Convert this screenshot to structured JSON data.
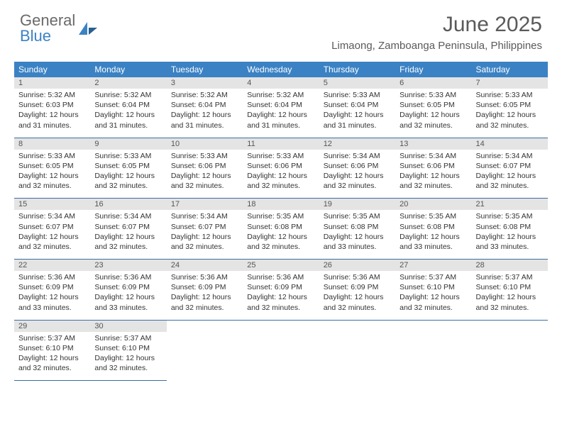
{
  "logo": {
    "text1": "General",
    "text2": "Blue"
  },
  "title": "June 2025",
  "location": "Limaong, Zamboanga Peninsula, Philippines",
  "colors": {
    "header_bg": "#3b82c4",
    "header_text": "#ffffff",
    "daynum_bg": "#e4e4e4",
    "daynum_text": "#555555",
    "row_border": "#3b6ea0",
    "body_text": "#333333",
    "title_text": "#5a5a5a"
  },
  "columns": [
    "Sunday",
    "Monday",
    "Tuesday",
    "Wednesday",
    "Thursday",
    "Friday",
    "Saturday"
  ],
  "weeks": [
    [
      {
        "n": "1",
        "sr": "5:32 AM",
        "ss": "6:03 PM",
        "dl": "12 hours and 31 minutes."
      },
      {
        "n": "2",
        "sr": "5:32 AM",
        "ss": "6:04 PM",
        "dl": "12 hours and 31 minutes."
      },
      {
        "n": "3",
        "sr": "5:32 AM",
        "ss": "6:04 PM",
        "dl": "12 hours and 31 minutes."
      },
      {
        "n": "4",
        "sr": "5:32 AM",
        "ss": "6:04 PM",
        "dl": "12 hours and 31 minutes."
      },
      {
        "n": "5",
        "sr": "5:33 AM",
        "ss": "6:04 PM",
        "dl": "12 hours and 31 minutes."
      },
      {
        "n": "6",
        "sr": "5:33 AM",
        "ss": "6:05 PM",
        "dl": "12 hours and 32 minutes."
      },
      {
        "n": "7",
        "sr": "5:33 AM",
        "ss": "6:05 PM",
        "dl": "12 hours and 32 minutes."
      }
    ],
    [
      {
        "n": "8",
        "sr": "5:33 AM",
        "ss": "6:05 PM",
        "dl": "12 hours and 32 minutes."
      },
      {
        "n": "9",
        "sr": "5:33 AM",
        "ss": "6:05 PM",
        "dl": "12 hours and 32 minutes."
      },
      {
        "n": "10",
        "sr": "5:33 AM",
        "ss": "6:06 PM",
        "dl": "12 hours and 32 minutes."
      },
      {
        "n": "11",
        "sr": "5:33 AM",
        "ss": "6:06 PM",
        "dl": "12 hours and 32 minutes."
      },
      {
        "n": "12",
        "sr": "5:34 AM",
        "ss": "6:06 PM",
        "dl": "12 hours and 32 minutes."
      },
      {
        "n": "13",
        "sr": "5:34 AM",
        "ss": "6:06 PM",
        "dl": "12 hours and 32 minutes."
      },
      {
        "n": "14",
        "sr": "5:34 AM",
        "ss": "6:07 PM",
        "dl": "12 hours and 32 minutes."
      }
    ],
    [
      {
        "n": "15",
        "sr": "5:34 AM",
        "ss": "6:07 PM",
        "dl": "12 hours and 32 minutes."
      },
      {
        "n": "16",
        "sr": "5:34 AM",
        "ss": "6:07 PM",
        "dl": "12 hours and 32 minutes."
      },
      {
        "n": "17",
        "sr": "5:34 AM",
        "ss": "6:07 PM",
        "dl": "12 hours and 32 minutes."
      },
      {
        "n": "18",
        "sr": "5:35 AM",
        "ss": "6:08 PM",
        "dl": "12 hours and 32 minutes."
      },
      {
        "n": "19",
        "sr": "5:35 AM",
        "ss": "6:08 PM",
        "dl": "12 hours and 33 minutes."
      },
      {
        "n": "20",
        "sr": "5:35 AM",
        "ss": "6:08 PM",
        "dl": "12 hours and 33 minutes."
      },
      {
        "n": "21",
        "sr": "5:35 AM",
        "ss": "6:08 PM",
        "dl": "12 hours and 33 minutes."
      }
    ],
    [
      {
        "n": "22",
        "sr": "5:36 AM",
        "ss": "6:09 PM",
        "dl": "12 hours and 33 minutes."
      },
      {
        "n": "23",
        "sr": "5:36 AM",
        "ss": "6:09 PM",
        "dl": "12 hours and 33 minutes."
      },
      {
        "n": "24",
        "sr": "5:36 AM",
        "ss": "6:09 PM",
        "dl": "12 hours and 32 minutes."
      },
      {
        "n": "25",
        "sr": "5:36 AM",
        "ss": "6:09 PM",
        "dl": "12 hours and 32 minutes."
      },
      {
        "n": "26",
        "sr": "5:36 AM",
        "ss": "6:09 PM",
        "dl": "12 hours and 32 minutes."
      },
      {
        "n": "27",
        "sr": "5:37 AM",
        "ss": "6:10 PM",
        "dl": "12 hours and 32 minutes."
      },
      {
        "n": "28",
        "sr": "5:37 AM",
        "ss": "6:10 PM",
        "dl": "12 hours and 32 minutes."
      }
    ],
    [
      {
        "n": "29",
        "sr": "5:37 AM",
        "ss": "6:10 PM",
        "dl": "12 hours and 32 minutes."
      },
      {
        "n": "30",
        "sr": "5:37 AM",
        "ss": "6:10 PM",
        "dl": "12 hours and 32 minutes."
      },
      null,
      null,
      null,
      null,
      null
    ]
  ],
  "labels": {
    "sunrise": "Sunrise:",
    "sunset": "Sunset:",
    "daylight": "Daylight:"
  }
}
